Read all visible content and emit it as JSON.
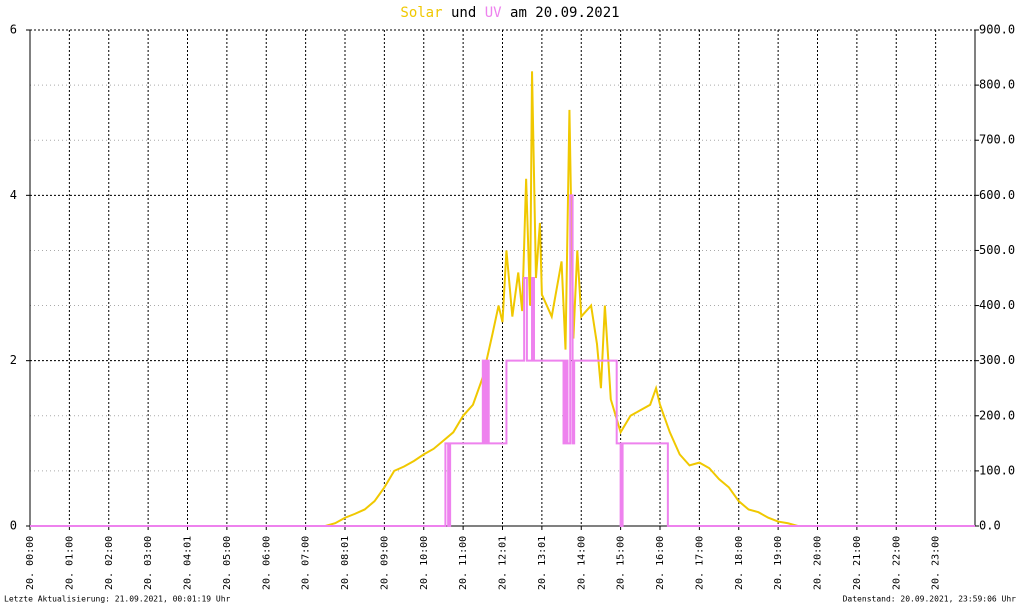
{
  "chart_data": {
    "type": "line",
    "title_parts": [
      "Solar",
      "und",
      "UV",
      "am 20.09.2021"
    ],
    "footer_left": "Letzte Aktualisierung: 21.09.2021, 00:01:19 Uhr",
    "footer_right": "Datenstand: 20.09.2021, 23:59:06 Uhr",
    "xlim": [
      0,
      24
    ],
    "xticks": [
      {
        "value": 0,
        "label": "20. 00:00"
      },
      {
        "value": 1,
        "label": "20. 01:00"
      },
      {
        "value": 2,
        "label": "20. 02:00"
      },
      {
        "value": 3,
        "label": "20. 03:00"
      },
      {
        "value": 4,
        "label": "20. 04:01"
      },
      {
        "value": 5,
        "label": "20. 05:00"
      },
      {
        "value": 6,
        "label": "20. 06:00"
      },
      {
        "value": 7,
        "label": "20. 07:00"
      },
      {
        "value": 8,
        "label": "20. 08:01"
      },
      {
        "value": 9,
        "label": "20. 09:00"
      },
      {
        "value": 10,
        "label": "20. 10:00"
      },
      {
        "value": 11,
        "label": "20. 11:00"
      },
      {
        "value": 12,
        "label": "20. 12:01"
      },
      {
        "value": 13,
        "label": "20. 13:01"
      },
      {
        "value": 14,
        "label": "20. 14:00"
      },
      {
        "value": 15,
        "label": "20. 15:00"
      },
      {
        "value": 16,
        "label": "20. 16:00"
      },
      {
        "value": 17,
        "label": "20. 17:00"
      },
      {
        "value": 18,
        "label": "20. 18:00"
      },
      {
        "value": 19,
        "label": "20. 19:00"
      },
      {
        "value": 20,
        "label": "20. 20:00"
      },
      {
        "value": 21,
        "label": "20. 21:00"
      },
      {
        "value": 22,
        "label": "20. 22:00"
      },
      {
        "value": 23,
        "label": "20. 23:00"
      }
    ],
    "ylim": [
      0,
      6
    ],
    "yticks": [
      0,
      2,
      4,
      6
    ],
    "y2lim": [
      0,
      900
    ],
    "y2ticks": [
      {
        "value": 0,
        "label": "0.0"
      },
      {
        "value": 100,
        "label": "100.0"
      },
      {
        "value": 200,
        "label": "200.0"
      },
      {
        "value": 300,
        "label": "300.0"
      },
      {
        "value": 400,
        "label": "400.0"
      },
      {
        "value": 500,
        "label": "500.0"
      },
      {
        "value": 600,
        "label": "600.0"
      },
      {
        "value": 700,
        "label": "700.0"
      },
      {
        "value": 800,
        "label": "800.0"
      },
      {
        "value": 900,
        "label": "900.0"
      }
    ],
    "grid": true,
    "series": [
      {
        "name": "Solar",
        "color": "#f0c800",
        "axis": "y2",
        "x": [
          0,
          7.5,
          7.75,
          8,
          8.25,
          8.5,
          8.75,
          9,
          9.25,
          9.5,
          9.75,
          10,
          10.25,
          10.5,
          10.75,
          11,
          11.25,
          11.5,
          11.75,
          11.9,
          12,
          12.1,
          12.25,
          12.4,
          12.5,
          12.6,
          12.7,
          12.75,
          12.85,
          12.95,
          13,
          13.25,
          13.5,
          13.6,
          13.7,
          13.8,
          13.9,
          14,
          14.25,
          14.4,
          14.5,
          14.6,
          14.75,
          15,
          15.25,
          15.5,
          15.75,
          15.9,
          16,
          16.25,
          16.5,
          16.75,
          17,
          17.25,
          17.5,
          17.75,
          18,
          18.25,
          18.5,
          18.75,
          19,
          19.25,
          19.5,
          24
        ],
        "values": [
          0,
          0,
          5,
          15,
          22,
          30,
          45,
          70,
          100,
          108,
          118,
          130,
          140,
          155,
          170,
          200,
          220,
          270,
          350,
          400,
          370,
          500,
          380,
          460,
          390,
          630,
          400,
          825,
          450,
          550,
          420,
          380,
          480,
          320,
          755,
          340,
          500,
          380,
          400,
          330,
          250,
          400,
          230,
          170,
          200,
          210,
          220,
          250,
          220,
          170,
          130,
          110,
          115,
          105,
          85,
          70,
          45,
          30,
          25,
          15,
          8,
          5,
          0,
          0
        ]
      },
      {
        "name": "UV",
        "color": "#ee82ee",
        "axis": "y",
        "x": [
          0,
          10.55,
          10.55,
          10.62,
          10.62,
          10.67,
          10.67,
          11.5,
          11.5,
          11.55,
          11.55,
          11.6,
          11.6,
          11.65,
          11.65,
          12.1,
          12.1,
          12.55,
          12.55,
          12.62,
          12.62,
          12.75,
          12.75,
          12.8,
          12.8,
          13.55,
          13.55,
          13.6,
          13.6,
          13.65,
          13.65,
          13.72,
          13.72,
          13.78,
          13.78,
          13.82,
          13.82,
          14.9,
          14.9,
          15,
          15,
          15.05,
          15.05,
          16.2,
          16.2,
          24
        ],
        "values": [
          0,
          0,
          1,
          1,
          0,
          0,
          1,
          1,
          2,
          2,
          1,
          1,
          2,
          2,
          1,
          1,
          2,
          2,
          3,
          3,
          2,
          2,
          3,
          3,
          2,
          2,
          1,
          1,
          2,
          2,
          1,
          1,
          4,
          4,
          1,
          1,
          2,
          2,
          1,
          1,
          0,
          0,
          1,
          1,
          0,
          0
        ]
      }
    ]
  }
}
